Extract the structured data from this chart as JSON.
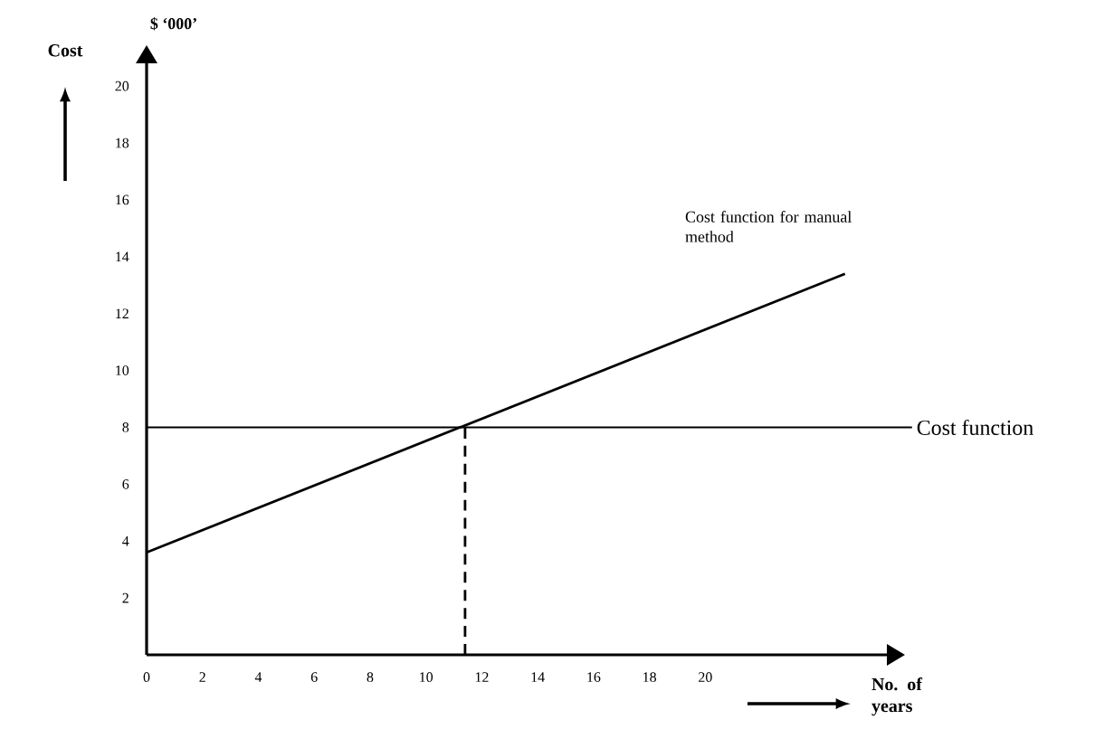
{
  "chart_data": {
    "type": "line",
    "xlabel": "No. of years",
    "ylabel": "Cost",
    "x": [
      0,
      25
    ],
    "series": [
      {
        "color": "#000000",
        "values": [
          3.6,
          13.4
        ],
        "line_style": "solid"
      },
      {
        "color": "#000000",
        "x": [
          11.4,
          11.4
        ],
        "values": [
          0,
          8
        ],
        "line_style": "dashed"
      }
    ],
    "xlim": [
      0,
      26.5
    ],
    "ylim": [
      0,
      20.8
    ],
    "xticks": [
      0,
      2,
      4,
      6,
      8,
      10,
      12,
      14,
      16,
      18,
      20
    ],
    "yticks": [
      2,
      4,
      6,
      8,
      10,
      12,
      14,
      16,
      18,
      20
    ],
    "ref_lines": [
      {
        "axis": "y",
        "value": 8,
        "label": "Cost function",
        "color": "#000000"
      }
    ],
    "annotations": [
      "Cost function for manual method",
      "$ ‘000’"
    ],
    "grid": false
  }
}
